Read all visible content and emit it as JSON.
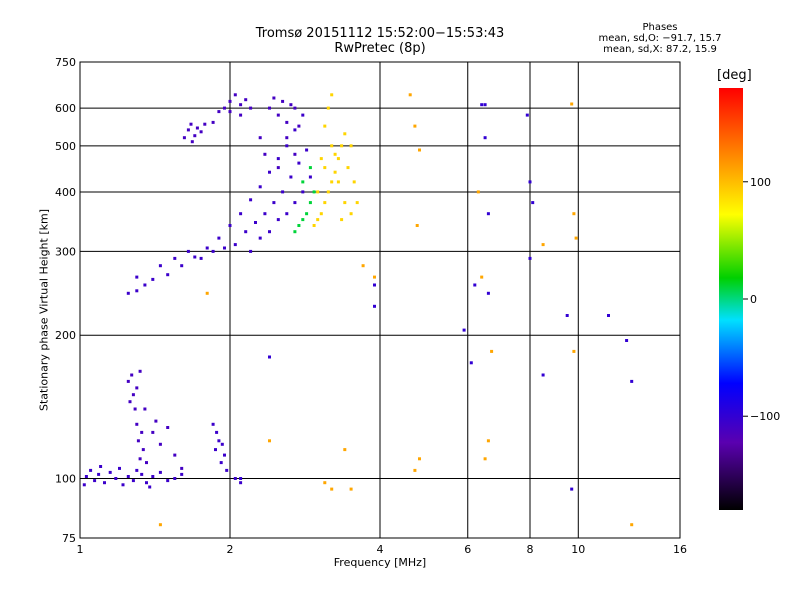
{
  "title": {
    "line1": "Tromsø 20151112 15:52:00−15:53:43",
    "line2": "RwPretec (8p)"
  },
  "stats": {
    "heading": "Phases",
    "line_o": "mean, sd,O: −91.7, 15.7",
    "line_x": "mean, sd,X:  87.2, 15.9"
  },
  "colorbar": {
    "unit_label": "[deg]",
    "range": [
      -180,
      180
    ],
    "ticks": [
      {
        "value": 100,
        "label": "100"
      },
      {
        "value": 0,
        "label": "0"
      },
      {
        "value": -100,
        "label": "−100"
      }
    ]
  },
  "chart_data": {
    "type": "scatter",
    "title": "Tromsø 20151112 15:52:00−15:53:43",
    "subtitle": "RwPretec (8p)",
    "xlabel": "Frequency [MHz]",
    "ylabel": "Stationary phase Virtual Height [km]",
    "x_scale": "log",
    "y_scale": "log",
    "xlim": [
      1,
      16
    ],
    "ylim": [
      75,
      750
    ],
    "x_ticks": [
      {
        "value": 1,
        "label": "1"
      },
      {
        "value": 2,
        "label": "2"
      },
      {
        "value": 4,
        "label": "4"
      },
      {
        "value": 6,
        "label": "6"
      },
      {
        "value": 8,
        "label": "8"
      },
      {
        "value": 10,
        "label": "10"
      },
      {
        "value": 16,
        "label": "16"
      }
    ],
    "y_ticks": [
      {
        "value": 75,
        "label": "75"
      },
      {
        "value": 100,
        "label": "100"
      },
      {
        "value": 200,
        "label": "200"
      },
      {
        "value": 300,
        "label": "300"
      },
      {
        "value": 400,
        "label": "400"
      },
      {
        "value": 500,
        "label": "500"
      },
      {
        "value": 600,
        "label": "600"
      },
      {
        "value": 750,
        "label": "750"
      }
    ],
    "grid": true,
    "color_variable": "phase [deg]",
    "series": [
      {
        "id": "E-layer",
        "mean_phase": -105,
        "points": [
          [
            1.03,
            101
          ],
          [
            1.05,
            104
          ],
          [
            1.07,
            99
          ],
          [
            1.09,
            102
          ],
          [
            1.12,
            98
          ],
          [
            1.15,
            103
          ],
          [
            1.18,
            100
          ],
          [
            1.2,
            105
          ],
          [
            1.22,
            97
          ],
          [
            1.25,
            101
          ],
          [
            1.28,
            99
          ],
          [
            1.3,
            104
          ],
          [
            1.33,
            102
          ],
          [
            1.36,
            98
          ],
          [
            1.4,
            101
          ],
          [
            1.45,
            103
          ],
          [
            1.5,
            99
          ],
          [
            1.55,
            100
          ],
          [
            1.6,
            102
          ],
          [
            1.02,
            97
          ],
          [
            1.1,
            106
          ],
          [
            1.38,
            96
          ]
        ]
      },
      {
        "id": "Es-trace",
        "mean_phase": -110,
        "points": [
          [
            1.25,
            160
          ],
          [
            1.27,
            165
          ],
          [
            1.28,
            150
          ],
          [
            1.29,
            140
          ],
          [
            1.3,
            130
          ],
          [
            1.3,
            155
          ],
          [
            1.31,
            120
          ],
          [
            1.32,
            110
          ],
          [
            1.33,
            125
          ],
          [
            1.34,
            115
          ],
          [
            1.35,
            140
          ],
          [
            1.36,
            108
          ],
          [
            1.4,
            125
          ],
          [
            1.45,
            118
          ],
          [
            1.5,
            128
          ],
          [
            1.55,
            112
          ],
          [
            1.6,
            105
          ],
          [
            1.26,
            145
          ],
          [
            1.32,
            168
          ],
          [
            1.42,
            132
          ]
        ]
      },
      {
        "id": "Es-2MHz",
        "mean_phase": -105,
        "points": [
          [
            1.85,
            130
          ],
          [
            1.87,
            115
          ],
          [
            1.9,
            120
          ],
          [
            1.92,
            108
          ],
          [
            1.95,
            112
          ],
          [
            1.97,
            104
          ],
          [
            1.88,
            125
          ],
          [
            2.05,
            100
          ],
          [
            2.1,
            98
          ],
          [
            1.93,
            118
          ]
        ]
      },
      {
        "id": "F-O-trace",
        "mean_phase": -105,
        "points": [
          [
            1.25,
            245
          ],
          [
            1.3,
            248
          ],
          [
            1.35,
            255
          ],
          [
            1.4,
            262
          ],
          [
            1.5,
            268
          ],
          [
            1.6,
            280
          ],
          [
            1.7,
            292
          ],
          [
            1.8,
            305
          ],
          [
            1.9,
            320
          ],
          [
            2.0,
            340
          ],
          [
            2.1,
            360
          ],
          [
            2.2,
            385
          ],
          [
            2.3,
            410
          ],
          [
            2.4,
            440
          ],
          [
            2.5,
            470
          ],
          [
            2.6,
            500
          ],
          [
            2.7,
            540
          ],
          [
            2.8,
            580
          ],
          [
            1.3,
            265
          ],
          [
            1.45,
            280
          ],
          [
            1.55,
            290
          ],
          [
            1.65,
            300
          ],
          [
            1.75,
            290
          ],
          [
            1.85,
            300
          ],
          [
            1.95,
            305
          ],
          [
            2.05,
            310
          ],
          [
            2.15,
            330
          ],
          [
            2.25,
            345
          ],
          [
            2.35,
            360
          ],
          [
            2.45,
            380
          ],
          [
            2.55,
            400
          ],
          [
            2.65,
            430
          ],
          [
            2.75,
            460
          ],
          [
            2.85,
            490
          ],
          [
            2.2,
            300
          ],
          [
            2.4,
            330
          ],
          [
            2.6,
            360
          ],
          [
            2.8,
            400
          ],
          [
            2.9,
            430
          ],
          [
            2.3,
            320
          ],
          [
            2.5,
            350
          ],
          [
            2.7,
            380
          ]
        ]
      },
      {
        "id": "F-O-spread",
        "mean_phase": -110,
        "points": [
          [
            2.4,
            600
          ],
          [
            2.45,
            630
          ],
          [
            2.5,
            580
          ],
          [
            2.55,
            620
          ],
          [
            2.6,
            560
          ],
          [
            2.65,
            610
          ],
          [
            2.7,
            600
          ],
          [
            2.75,
            550
          ],
          [
            2.3,
            520
          ],
          [
            2.35,
            480
          ],
          [
            2.5,
            450
          ],
          [
            2.6,
            520
          ],
          [
            2.7,
            480
          ]
        ]
      },
      {
        "id": "patch-600",
        "mean_phase": -110,
        "points": [
          [
            1.85,
            560
          ],
          [
            1.9,
            590
          ],
          [
            1.95,
            600
          ],
          [
            2.0,
            620
          ],
          [
            2.05,
            640
          ],
          [
            2.1,
            610
          ],
          [
            2.15,
            625
          ],
          [
            2.2,
            600
          ],
          [
            2.0,
            590
          ],
          [
            2.1,
            580
          ]
        ]
      },
      {
        "id": "patch-530",
        "mean_phase": -110,
        "points": [
          [
            1.62,
            520
          ],
          [
            1.65,
            540
          ],
          [
            1.67,
            555
          ],
          [
            1.7,
            525
          ],
          [
            1.72,
            545
          ],
          [
            1.75,
            535
          ],
          [
            1.78,
            555
          ],
          [
            1.68,
            510
          ]
        ]
      },
      {
        "id": "F-X-trace",
        "mean_phase": 90,
        "points": [
          [
            2.95,
            340
          ],
          [
            3.0,
            350
          ],
          [
            3.05,
            360
          ],
          [
            3.1,
            380
          ],
          [
            3.15,
            400
          ],
          [
            3.2,
            420
          ],
          [
            3.25,
            440
          ],
          [
            3.3,
            470
          ],
          [
            3.35,
            500
          ],
          [
            3.4,
            530
          ],
          [
            3.0,
            400
          ],
          [
            3.1,
            450
          ],
          [
            3.2,
            500
          ],
          [
            3.1,
            550
          ],
          [
            3.15,
            600
          ],
          [
            3.2,
            640
          ],
          [
            3.3,
            420
          ],
          [
            3.4,
            380
          ],
          [
            3.5,
            360
          ],
          [
            3.35,
            350
          ],
          [
            3.45,
            450
          ],
          [
            3.5,
            500
          ],
          [
            3.55,
            420
          ],
          [
            3.6,
            380
          ],
          [
            3.25,
            480
          ],
          [
            3.05,
            470
          ]
        ]
      },
      {
        "id": "transition",
        "mean_phase": 10,
        "points": [
          [
            2.7,
            330
          ],
          [
            2.75,
            340
          ],
          [
            2.8,
            350
          ],
          [
            2.85,
            360
          ],
          [
            2.9,
            380
          ],
          [
            2.95,
            400
          ],
          [
            2.8,
            420
          ],
          [
            2.9,
            450
          ]
        ]
      },
      {
        "id": "scattered-x",
        "mean_phase": 110,
        "points": [
          [
            4.6,
            640
          ],
          [
            4.7,
            550
          ],
          [
            4.8,
            490
          ],
          [
            4.75,
            340
          ],
          [
            4.7,
            104
          ],
          [
            4.8,
            110
          ],
          [
            6.3,
            400
          ],
          [
            6.4,
            265
          ],
          [
            6.6,
            120
          ],
          [
            6.5,
            110
          ],
          [
            9.8,
            360
          ],
          [
            9.9,
            320
          ],
          [
            9.7,
            612
          ],
          [
            9.8,
            185
          ],
          [
            8.5,
            310
          ],
          [
            3.7,
            280
          ],
          [
            3.9,
            265
          ],
          [
            3.2,
            95
          ],
          [
            3.5,
            95
          ],
          [
            3.1,
            98
          ],
          [
            12.8,
            80
          ],
          [
            1.45,
            80
          ],
          [
            1.8,
            245
          ],
          [
            2.4,
            120
          ],
          [
            3.4,
            115
          ],
          [
            6.7,
            185
          ]
        ]
      },
      {
        "id": "scattered-o",
        "mean_phase": -100,
        "points": [
          [
            5.9,
            205
          ],
          [
            6.1,
            175
          ],
          [
            6.2,
            255
          ],
          [
            6.6,
            245
          ],
          [
            6.5,
            610
          ],
          [
            6.5,
            520
          ],
          [
            6.6,
            360
          ],
          [
            7.9,
            580
          ],
          [
            8.0,
            420
          ],
          [
            8.0,
            290
          ],
          [
            8.5,
            165
          ],
          [
            9.5,
            220
          ],
          [
            9.7,
            95
          ],
          [
            11.5,
            220
          ],
          [
            12.5,
            195
          ],
          [
            12.8,
            160
          ],
          [
            8.1,
            380
          ],
          [
            3.9,
            255
          ],
          [
            2.1,
            100
          ],
          [
            2.4,
            180
          ],
          [
            3.9,
            230
          ],
          [
            6.4,
            610
          ]
        ]
      }
    ]
  }
}
